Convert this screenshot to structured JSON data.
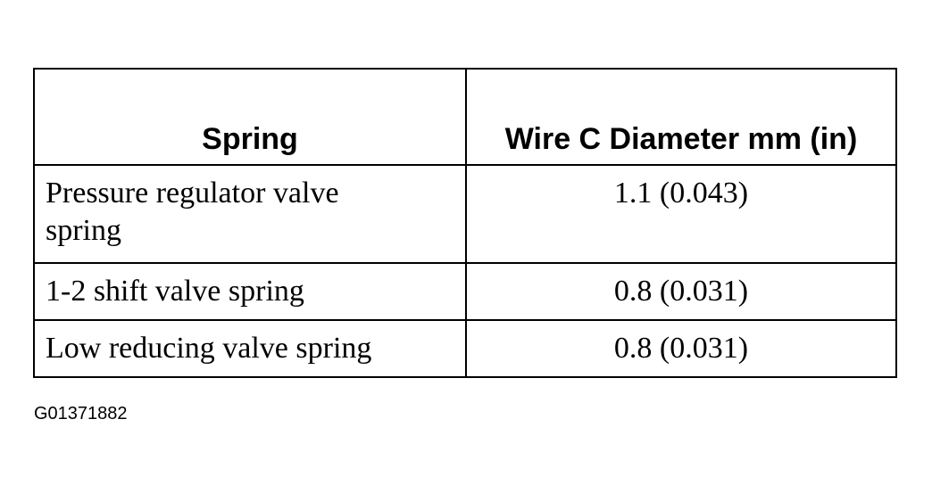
{
  "table": {
    "header": [
      "Spring",
      "Wire C Diameter mm (in)"
    ],
    "rows": [
      [
        "Pressure regulator valve spring",
        "1.1 (0.043)"
      ],
      [
        "1-2 shift valve spring",
        "0.8 (0.031)"
      ],
      [
        "Low reducing valve spring",
        "0.8 (0.031)"
      ]
    ]
  },
  "figure_id": "G01371882"
}
